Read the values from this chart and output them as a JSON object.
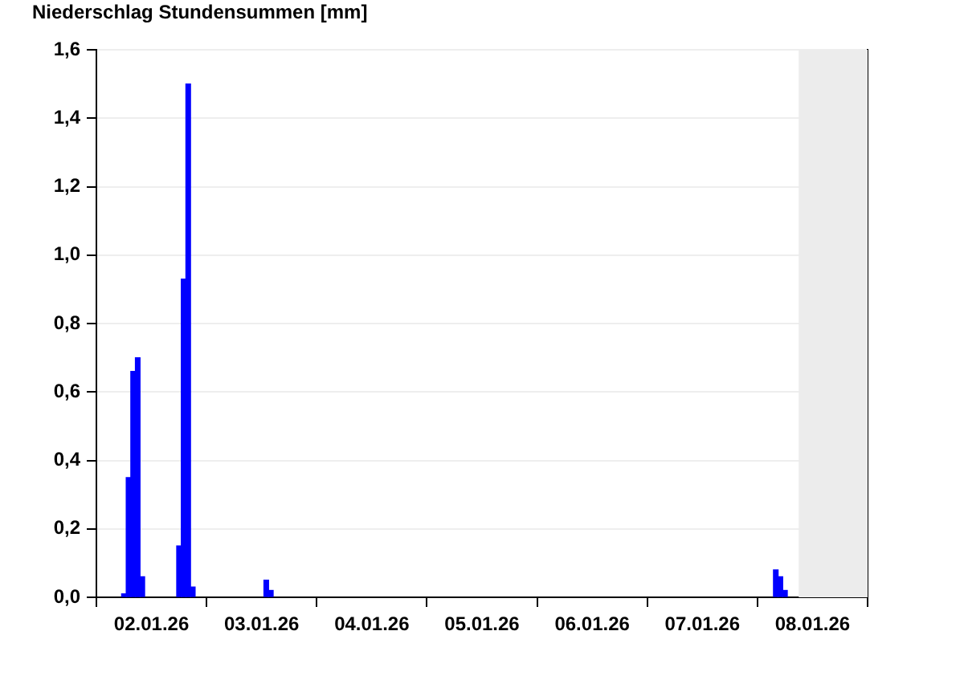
{
  "chart_data": {
    "type": "bar",
    "title": "Niederschlag Stundensummen [mm]",
    "x": [
      "--01-02T06:00",
      "--01-02T07:00",
      "--01-02T08:00",
      "--01-02T09:00",
      "--01-02T10:00",
      "--01-02T18:00",
      "--01-02T19:00",
      "--01-02T20:00",
      "--01-02T21:00",
      "--01-03T13:00",
      "--01-03T14:00",
      "--01-08T04:00",
      "--01-08T05:00",
      "--01-08T06:00"
    ],
    "values": [
      0.01,
      0.35,
      0.66,
      0.7,
      0.06,
      0.15,
      0.93,
      1.5,
      0.03,
      0.05,
      0.02,
      0.08,
      0.06,
      0.02
    ],
    "color": "#0000ff",
    "xlim": [
      "--01-02T00:00",
      "--01-09T00:00"
    ],
    "xticks": [
      {
        "value": "--01-02T12:00",
        "label": "02.01.26"
      },
      {
        "value": "--01-03T12:00",
        "label": "03.01.26"
      },
      {
        "value": "--01-04T12:00",
        "label": "04.01.26"
      },
      {
        "value": "--01-05T12:00",
        "label": "05.01.26"
      },
      {
        "value": "--01-06T12:00",
        "label": "06.01.26"
      },
      {
        "value": "--01-07T12:00",
        "label": "07.01.26"
      },
      {
        "value": "--01-08T12:00",
        "label": "08.01.26"
      }
    ],
    "ylim": [
      0,
      1.6
    ],
    "yticks": [
      {
        "value": 0,
        "label": "0,0"
      },
      {
        "value": 0.2,
        "label": "0,2"
      },
      {
        "value": 0.4,
        "label": "0,4"
      },
      {
        "value": 0.6,
        "label": "0,6"
      },
      {
        "value": 0.8,
        "label": "0,8"
      },
      {
        "value": 1,
        "label": "1,0"
      },
      {
        "value": 1.2,
        "label": "1,2"
      },
      {
        "value": 1.4,
        "label": "1,4"
      },
      {
        "value": 1.6,
        "label": "1,6"
      }
    ],
    "grid": "y",
    "bands": [
      {
        "axis": "x",
        "from": "--01-08T09:00",
        "to": "--01-09T00:00",
        "label": null,
        "color": "#ececec"
      }
    ]
  }
}
